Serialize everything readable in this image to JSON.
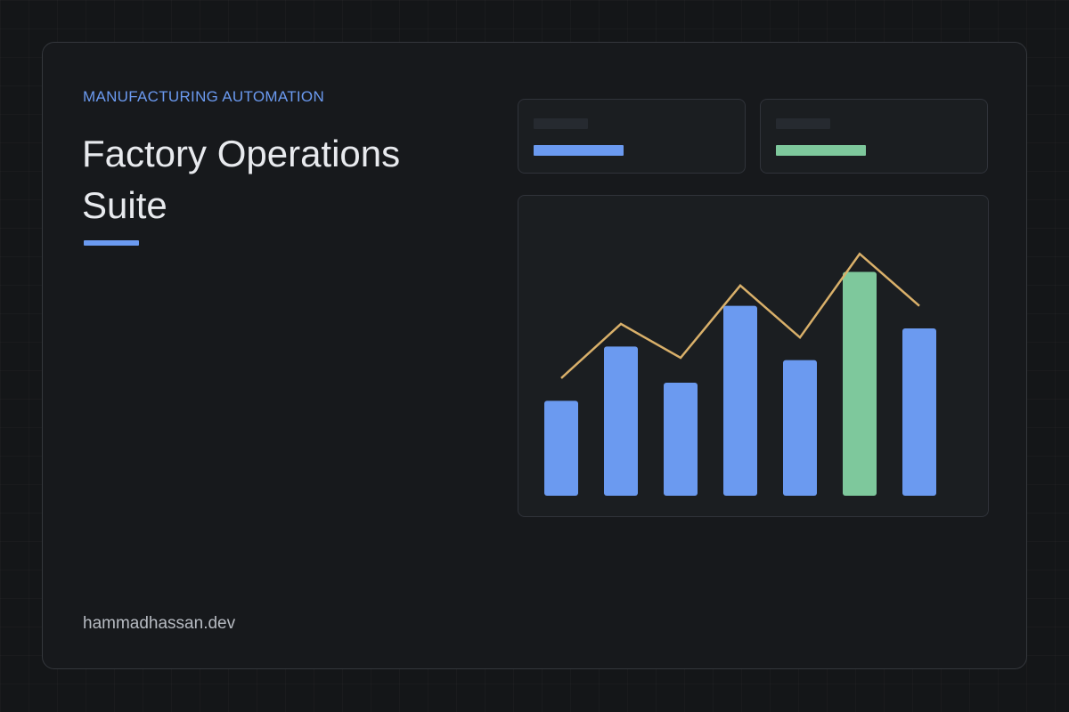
{
  "hero": {
    "eyebrow": "MANUFACTURING AUTOMATION",
    "title_line1": "Factory Operations",
    "title_line2": "Suite",
    "footer": "hammadhassan.dev"
  },
  "stats": [
    {
      "color": "#6b9af0",
      "fill": 1.0
    },
    {
      "color": "#7ec89c",
      "fill": 1.0
    }
  ],
  "colors": {
    "accent": "#6b9af0",
    "highlight": "#7ec89c",
    "trend": "#d9b06a"
  },
  "chart_data": {
    "type": "bar",
    "grid": false,
    "ylim": [
      0,
      100
    ],
    "bars": {
      "values": [
        42,
        66,
        50,
        84,
        60,
        99,
        74
      ],
      "highlight_index": 5
    },
    "trend_line": {
      "values": [
        52,
        76,
        61,
        93,
        70,
        107,
        84
      ]
    }
  }
}
